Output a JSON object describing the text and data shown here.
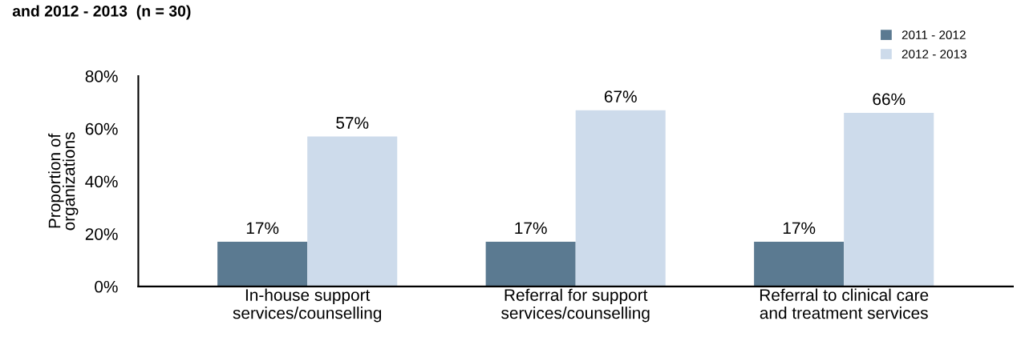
{
  "chart_data": {
    "type": "bar",
    "title": "and 2012 - 2013  (n = 30)",
    "ylabel": "Proportion of\norganizations",
    "categories": [
      "In-house support\nservices/counselling",
      "Referral for support\nservices/counselling",
      "Referral to clinical care\nand treatment services"
    ],
    "series": [
      {
        "name": "2011 - 2012",
        "color": "#5b7a91",
        "values": [
          17,
          17,
          17
        ],
        "value_labels": [
          "17%",
          "17%",
          "17%"
        ]
      },
      {
        "name": "2012 - 2013",
        "color": "#cddbeb",
        "values": [
          57,
          67,
          66
        ],
        "value_labels": [
          "57%",
          "67%",
          "66%"
        ]
      }
    ],
    "ylim": [
      0,
      80
    ],
    "yticks": [
      {
        "value": 0,
        "label": "0%"
      },
      {
        "value": 20,
        "label": "20%"
      },
      {
        "value": 40,
        "label": "40%"
      },
      {
        "value": 60,
        "label": "60%"
      },
      {
        "value": 80,
        "label": "80%"
      }
    ],
    "grid": false,
    "legend": "top right"
  }
}
